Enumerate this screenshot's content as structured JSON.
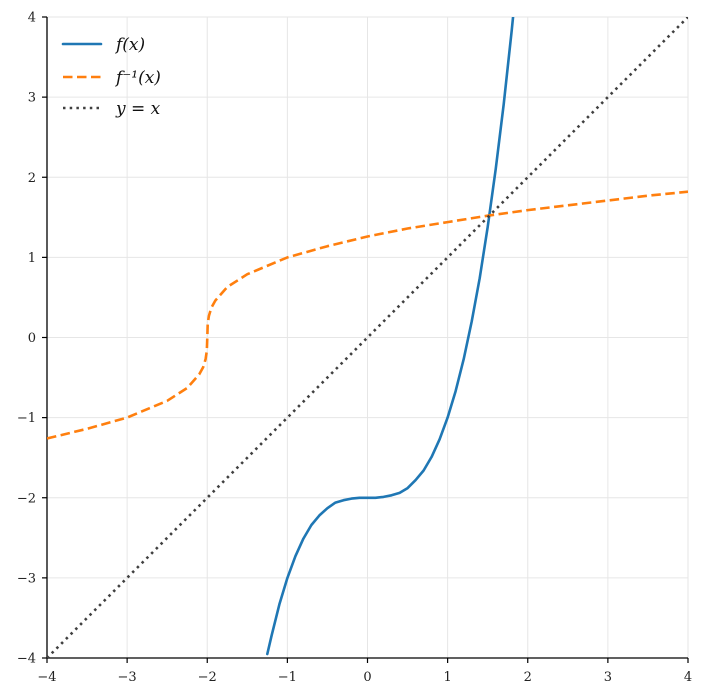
{
  "chart_data": {
    "type": "line",
    "xlim": [
      -4,
      4
    ],
    "ylim": [
      -4,
      4
    ],
    "grid": true,
    "legend_position": "top-left",
    "x_ticks": [
      "−4",
      "−3",
      "−2",
      "−1",
      "0",
      "1",
      "2",
      "3",
      "4"
    ],
    "y_ticks": [
      "−4",
      "−3",
      "−2",
      "−1",
      "0",
      "1",
      "2",
      "3",
      "4"
    ],
    "series": [
      {
        "name": "f(x)",
        "style": "solid",
        "color": "#1f77b4",
        "points": [
          [
            -1.25,
            -3.95
          ],
          [
            -1.2,
            -3.73
          ],
          [
            -1.1,
            -3.33
          ],
          [
            -1.0,
            -3.0
          ],
          [
            -0.9,
            -2.73
          ],
          [
            -0.8,
            -2.51
          ],
          [
            -0.7,
            -2.34
          ],
          [
            -0.6,
            -2.22
          ],
          [
            -0.5,
            -2.13
          ],
          [
            -0.4,
            -2.06
          ],
          [
            -0.3,
            -2.03
          ],
          [
            -0.2,
            -2.01
          ],
          [
            -0.1,
            -2.0
          ],
          [
            0.0,
            -2.0
          ],
          [
            0.1,
            -2.0
          ],
          [
            0.2,
            -1.99
          ],
          [
            0.3,
            -1.97
          ],
          [
            0.4,
            -1.94
          ],
          [
            0.5,
            -1.88
          ],
          [
            0.6,
            -1.78
          ],
          [
            0.7,
            -1.66
          ],
          [
            0.8,
            -1.49
          ],
          [
            0.9,
            -1.27
          ],
          [
            1.0,
            -1.0
          ],
          [
            1.1,
            -0.67
          ],
          [
            1.2,
            -0.27
          ],
          [
            1.3,
            0.2
          ],
          [
            1.4,
            0.74
          ],
          [
            1.5,
            1.38
          ],
          [
            1.6,
            2.1
          ],
          [
            1.7,
            2.91
          ],
          [
            1.8,
            3.83
          ],
          [
            1.82,
            4.03
          ]
        ]
      },
      {
        "name": "f⁻¹(x)",
        "style": "dashed",
        "color": "#ff7f0e",
        "points": [
          [
            -4.0,
            -1.26
          ],
          [
            -3.5,
            -1.14
          ],
          [
            -3.0,
            -1.0
          ],
          [
            -2.5,
            -0.79
          ],
          [
            -2.25,
            -0.63
          ],
          [
            -2.1,
            -0.46
          ],
          [
            -2.05,
            -0.37
          ],
          [
            -2.02,
            -0.27
          ],
          [
            -2.005,
            -0.17
          ],
          [
            -2.0,
            0.0
          ],
          [
            -1.995,
            0.17
          ],
          [
            -1.98,
            0.27
          ],
          [
            -1.95,
            0.37
          ],
          [
            -1.9,
            0.46
          ],
          [
            -1.75,
            0.63
          ],
          [
            -1.5,
            0.79
          ],
          [
            -1.0,
            1.0
          ],
          [
            -0.5,
            1.14
          ],
          [
            0.0,
            1.26
          ],
          [
            0.5,
            1.36
          ],
          [
            1.0,
            1.44
          ],
          [
            1.5,
            1.52
          ],
          [
            2.0,
            1.59
          ],
          [
            2.5,
            1.65
          ],
          [
            3.0,
            1.71
          ],
          [
            3.5,
            1.77
          ],
          [
            4.0,
            1.82
          ]
        ]
      },
      {
        "name": "y = x",
        "style": "dotted",
        "color": "#404040",
        "points": [
          [
            -4,
            -4
          ],
          [
            4,
            4
          ]
        ]
      }
    ]
  }
}
